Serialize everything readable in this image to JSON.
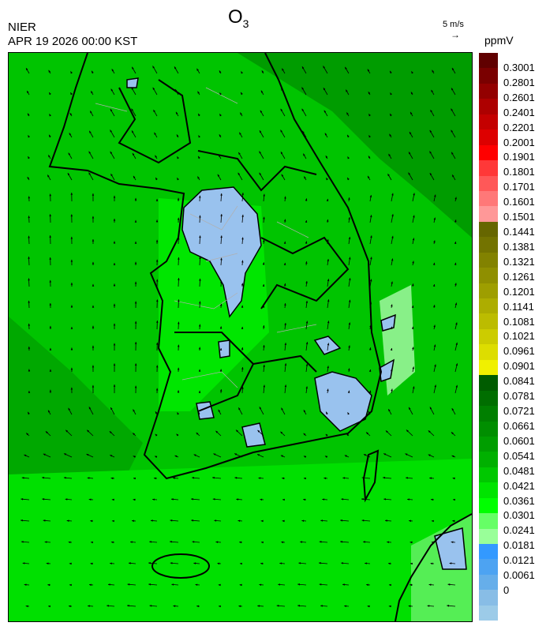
{
  "title": {
    "main": "O",
    "sub": "3"
  },
  "org": "NIER",
  "datetime": "APR 19 2026 00:00 KST",
  "wind_legend": {
    "label": "5 m/s",
    "arrow": "→"
  },
  "colorbar": {
    "unit": "ppmV",
    "labels": [
      "0.3001",
      "0.2801",
      "0.2601",
      "0.2401",
      "0.2201",
      "0.2001",
      "0.1901",
      "0.1801",
      "0.1701",
      "0.1601",
      "0.1501",
      "0.1441",
      "0.1381",
      "0.1321",
      "0.1261",
      "0.1201",
      "0.1141",
      "0.1081",
      "0.1021",
      "0.0961",
      "0.0901",
      "0.0841",
      "0.0781",
      "0.0721",
      "0.0661",
      "0.0601",
      "0.0541",
      "0.0481",
      "0.0421",
      "0.0361",
      "0.0301",
      "0.0241",
      "0.0181",
      "0.0121",
      "0.0061",
      "0"
    ],
    "colors": [
      "#600000",
      "#7a0000",
      "#930000",
      "#ad0000",
      "#c40000",
      "#dd0000",
      "#ff0000",
      "#ff3838",
      "#ff5858",
      "#ff7878",
      "#ff9898",
      "#666600",
      "#737300",
      "#828200",
      "#8f8f00",
      "#9e9e00",
      "#adad00",
      "#bcbc00",
      "#cccc00",
      "#dddd00",
      "#f0f000",
      "#005c00",
      "#006e00",
      "#007f00",
      "#008e00",
      "#009e00",
      "#00b000",
      "#00c800",
      "#00e400",
      "#00ff00",
      "#66ff66",
      "#99ff99",
      "#3399ff",
      "#4da3f2",
      "#66aeea",
      "#88bde6",
      "#9ccbe8"
    ]
  },
  "map": {
    "background": "#00c800",
    "low_o3_color": "#99c2ee",
    "coast_color": "#000000"
  }
}
